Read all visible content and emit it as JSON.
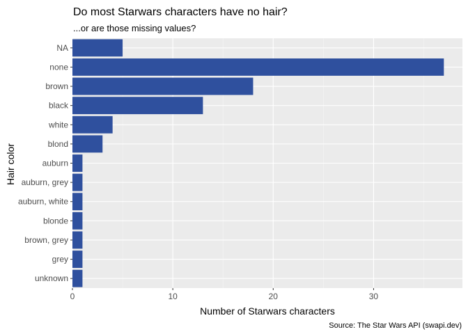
{
  "chart_data": {
    "type": "bar",
    "orientation": "horizontal",
    "title": "Do most Starwars characters have no hair?",
    "subtitle": "...or are those missing values?",
    "xlabel": "Number of Starwars characters",
    "ylabel": "Hair color",
    "caption": "Source: The Star Wars API (swapi.dev)",
    "categories": [
      "NA",
      "none",
      "brown",
      "black",
      "white",
      "blond",
      "auburn",
      "auburn, grey",
      "auburn, white",
      "blonde",
      "brown, grey",
      "grey",
      "unknown"
    ],
    "values": [
      5,
      37,
      18,
      13,
      4,
      3,
      1,
      1,
      1,
      1,
      1,
      1,
      1
    ],
    "xlim": [
      0,
      38.85
    ],
    "x_ticks": [
      0,
      10,
      20,
      30
    ],
    "grid": true,
    "colors": {
      "bar": "#2F509E",
      "panel": "#EBEBEB",
      "grid_major": "#FFFFFF",
      "grid_minor": "#F5F5F5"
    }
  }
}
